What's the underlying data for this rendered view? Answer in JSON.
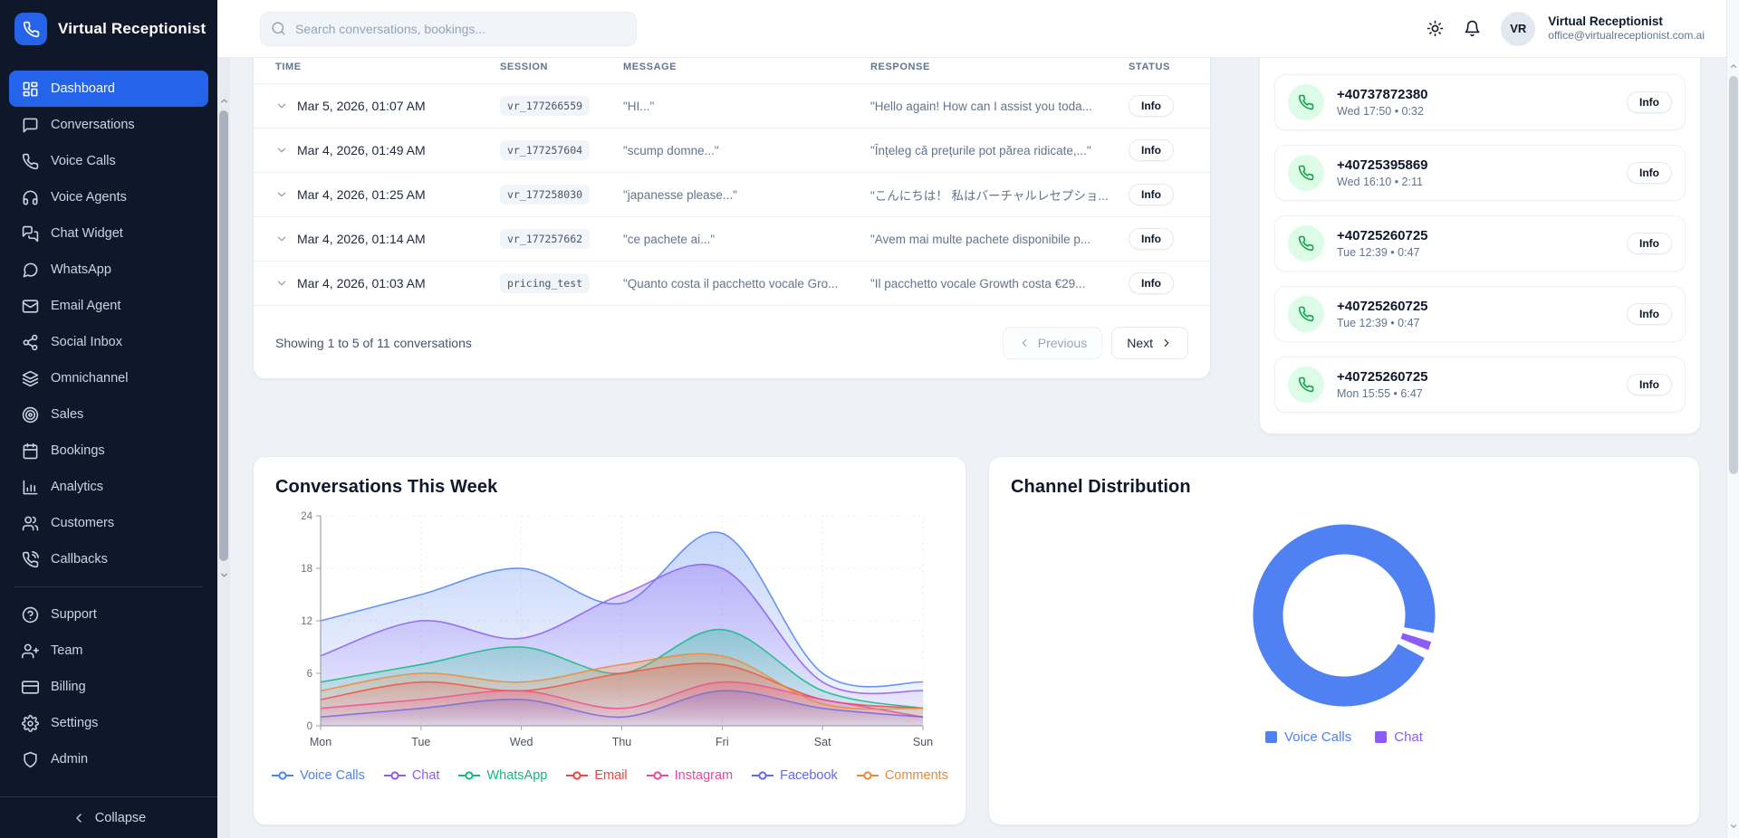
{
  "app_title": "Virtual Receptionist",
  "topbar": {
    "search_placeholder": "Search conversations, bookings...",
    "user": {
      "initials": "VR",
      "name": "Virtual Receptionist",
      "email": "office@virtualreceptionist.com.ai"
    }
  },
  "sidebar": {
    "logo_label": "Virtual Receptionist",
    "items": [
      {
        "label": "Dashboard",
        "icon": "dashboard-icon",
        "active": true
      },
      {
        "label": "Conversations",
        "icon": "conversations-icon"
      },
      {
        "label": "Voice Calls",
        "icon": "voice-calls-icon"
      },
      {
        "label": "Voice Agents",
        "icon": "voice-agents-icon"
      },
      {
        "label": "Chat Widget",
        "icon": "chat-widget-icon"
      },
      {
        "label": "WhatsApp",
        "icon": "whatsapp-icon"
      },
      {
        "label": "Email Agent",
        "icon": "email-agent-icon"
      },
      {
        "label": "Social Inbox",
        "icon": "social-inbox-icon"
      },
      {
        "label": "Omnichannel",
        "icon": "omnichannel-icon"
      },
      {
        "label": "Sales",
        "icon": "sales-icon"
      },
      {
        "label": "Bookings",
        "icon": "bookings-icon"
      },
      {
        "label": "Analytics",
        "icon": "analytics-icon"
      },
      {
        "label": "Customers",
        "icon": "customers-icon"
      },
      {
        "label": "Callbacks",
        "icon": "callbacks-icon",
        "divider_after": true
      },
      {
        "label": "Support",
        "icon": "support-icon"
      },
      {
        "label": "Team",
        "icon": "team-icon"
      },
      {
        "label": "Billing",
        "icon": "billing-icon"
      },
      {
        "label": "Settings",
        "icon": "settings-icon"
      },
      {
        "label": "Admin",
        "icon": "admin-icon"
      }
    ],
    "collapse_label": "Collapse"
  },
  "conversations_table": {
    "columns": [
      "TIME",
      "SESSION",
      "MESSAGE",
      "RESPONSE",
      "STATUS"
    ],
    "rows": [
      {
        "time": "Mar 5, 2026, 01:07 AM",
        "session": "vr_177266559",
        "message": "\"HI...\"",
        "response": "\"Hello again! How can I assist you toda...",
        "status": "Info"
      },
      {
        "time": "Mar 4, 2026, 01:49 AM",
        "session": "vr_177257604",
        "message": "\"scump domne...\"",
        "response": "\"Înțeleg că prețurile pot părea ridicate,...\"",
        "status": "Info"
      },
      {
        "time": "Mar 4, 2026, 01:25 AM",
        "session": "vr_177258030",
        "message": "\"japanesse please...\"",
        "response": "\"こんにちは！ 私はバーチャルレセプショ...",
        "status": "Info"
      },
      {
        "time": "Mar 4, 2026, 01:14 AM",
        "session": "vr_177257662",
        "message": "\"ce pachete ai...\"",
        "response": "\"Avem mai multe pachete disponibile p...",
        "status": "Info"
      },
      {
        "time": "Mar 4, 2026, 01:03 AM",
        "session": "pricing_test",
        "message": "\"Quanto costa il pacchetto vocale Gro...",
        "response": "\"Il pacchetto vocale Growth costa €29...",
        "status": "Info"
      }
    ],
    "footer": {
      "summary": "Showing 1 to 5 of 11 conversations",
      "previous_label": "Previous",
      "next_label": "Next"
    }
  },
  "calls_panel": {
    "items": [
      {
        "number": "+40737872380",
        "meta": "Wed 17:50 • 0:32",
        "action": "Info"
      },
      {
        "number": "+40725395869",
        "meta": "Wed 16:10 • 2:11",
        "action": "Info"
      },
      {
        "number": "+40725260725",
        "meta": "Tue 12:39 • 0:47",
        "action": "Info"
      },
      {
        "number": "+40725260725",
        "meta": "Tue 12:39 • 0:47",
        "action": "Info"
      },
      {
        "number": "+40725260725",
        "meta": "Mon 15:55 • 6:47",
        "action": "Info"
      }
    ]
  },
  "chart_data": [
    {
      "type": "area",
      "title": "Conversations This Week",
      "x": [
        "Mon",
        "Tue",
        "Wed",
        "Thu",
        "Fri",
        "Sat",
        "Sun"
      ],
      "ylim": [
        0,
        24
      ],
      "yticks": [
        0,
        6,
        12,
        18,
        24
      ],
      "grid": true,
      "legend_position": "bottom",
      "series": [
        {
          "name": "Voice Calls",
          "color": "#4f81f2",
          "values": [
            12,
            15,
            18,
            14,
            22,
            6,
            5
          ]
        },
        {
          "name": "Chat",
          "color": "#8b5cf6",
          "values": [
            8,
            12,
            10,
            15,
            18,
            5,
            4
          ]
        },
        {
          "name": "WhatsApp",
          "color": "#10b981",
          "values": [
            5,
            7,
            9,
            6,
            11,
            4,
            2
          ]
        },
        {
          "name": "Email",
          "color": "#ef4444",
          "values": [
            3,
            5,
            4,
            6,
            7,
            3,
            2
          ]
        },
        {
          "name": "Instagram",
          "color": "#ec4899",
          "values": [
            2,
            3,
            4,
            2,
            5,
            3,
            1
          ]
        },
        {
          "name": "Facebook",
          "color": "#6366f1",
          "values": [
            1,
            2,
            3,
            1,
            4,
            2,
            1
          ]
        },
        {
          "name": "Comments",
          "color": "#ed8936",
          "values": [
            4,
            6,
            5,
            7,
            8,
            2.5,
            2
          ]
        }
      ]
    },
    {
      "type": "pie",
      "donut": true,
      "title": "Channel Distribution",
      "labels": [
        "Voice Calls",
        "Chat"
      ],
      "values": [
        97,
        3
      ],
      "colors": [
        "#4f81f2",
        "#8b5cf6"
      ],
      "legend_position": "bottom"
    }
  ]
}
